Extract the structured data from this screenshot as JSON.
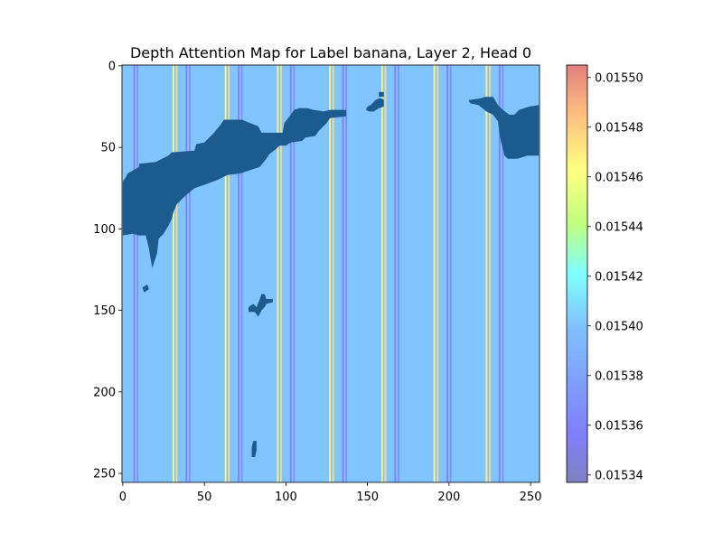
{
  "chart_data": {
    "type": "heatmap",
    "title": "Depth Attention Map for Label banana, Layer 2, Head 0",
    "xlabel": "",
    "ylabel": "",
    "xlim": [
      0,
      255
    ],
    "ylim": [
      255,
      0
    ],
    "x_ticks": [
      "0",
      "50",
      "100",
      "150",
      "200",
      "250"
    ],
    "y_ticks": [
      "0",
      "50",
      "100",
      "150",
      "200",
      "250"
    ],
    "colormap": "jet",
    "colormap_alpha": 0.5,
    "colorbar": {
      "range": [
        0.015337,
        0.015505
      ],
      "ticks": [
        "0.01534",
        "0.01536",
        "0.01538",
        "0.01540",
        "0.01542",
        "0.01544",
        "0.01546",
        "0.01548",
        "0.01550"
      ]
    },
    "base_value": 0.015381,
    "column_stripes": [
      {
        "x": 7,
        "value": 0.015355
      },
      {
        "x": 9,
        "value": 0.015362
      },
      {
        "x": 31,
        "value": 0.015445
      },
      {
        "x": 33,
        "value": 0.015455
      },
      {
        "x": 39,
        "value": 0.015355
      },
      {
        "x": 41,
        "value": 0.015362
      },
      {
        "x": 63,
        "value": 0.015445
      },
      {
        "x": 65,
        "value": 0.015455
      },
      {
        "x": 71,
        "value": 0.015355
      },
      {
        "x": 73,
        "value": 0.015362
      },
      {
        "x": 95,
        "value": 0.015445
      },
      {
        "x": 97,
        "value": 0.015455
      },
      {
        "x": 103,
        "value": 0.015355
      },
      {
        "x": 105,
        "value": 0.015362
      },
      {
        "x": 127,
        "value": 0.015445
      },
      {
        "x": 129,
        "value": 0.015455
      },
      {
        "x": 135,
        "value": 0.015355
      },
      {
        "x": 137,
        "value": 0.015362
      },
      {
        "x": 159,
        "value": 0.015445
      },
      {
        "x": 161,
        "value": 0.015455
      },
      {
        "x": 167,
        "value": 0.015355
      },
      {
        "x": 169,
        "value": 0.015362
      },
      {
        "x": 191,
        "value": 0.015445
      },
      {
        "x": 193,
        "value": 0.015455
      },
      {
        "x": 199,
        "value": 0.015355
      },
      {
        "x": 201,
        "value": 0.015362
      },
      {
        "x": 223,
        "value": 0.015445
      },
      {
        "x": 225,
        "value": 0.015455
      },
      {
        "x": 231,
        "value": 0.015355
      },
      {
        "x": 233,
        "value": 0.015362
      }
    ],
    "dark_overlay_regions": [
      {
        "name": "main-banana-band",
        "color": "#1d5b8f",
        "points": [
          [
            0,
            71
          ],
          [
            2,
            68
          ],
          [
            3,
            66
          ],
          [
            10,
            62
          ],
          [
            10,
            60
          ],
          [
            20,
            59
          ],
          [
            28,
            55
          ],
          [
            30,
            53
          ],
          [
            44,
            52
          ],
          [
            45,
            48
          ],
          [
            50,
            47
          ],
          [
            52,
            45
          ],
          [
            55,
            42
          ],
          [
            60,
            36
          ],
          [
            62,
            33
          ],
          [
            73,
            33
          ],
          [
            83,
            37
          ],
          [
            85,
            41
          ],
          [
            98,
            41
          ],
          [
            99,
            35
          ],
          [
            103,
            30
          ],
          [
            105,
            27
          ],
          [
            108,
            26
          ],
          [
            113,
            26
          ],
          [
            117,
            27
          ],
          [
            123,
            28
          ],
          [
            127,
            27
          ],
          [
            137,
            27
          ],
          [
            137,
            31
          ],
          [
            127,
            32
          ],
          [
            125,
            35
          ],
          [
            120,
            40
          ],
          [
            118,
            43
          ],
          [
            112,
            44
          ],
          [
            110,
            46
          ],
          [
            103,
            47
          ],
          [
            100,
            49
          ],
          [
            96,
            49
          ],
          [
            94,
            51
          ],
          [
            90,
            54
          ],
          [
            88,
            57
          ],
          [
            84,
            62
          ],
          [
            78,
            64
          ],
          [
            72,
            66
          ],
          [
            64,
            67
          ],
          [
            58,
            70
          ],
          [
            50,
            73
          ],
          [
            44,
            75
          ],
          [
            38,
            80
          ],
          [
            33,
            85
          ],
          [
            31,
            90
          ],
          [
            30,
            94
          ],
          [
            28,
            98
          ],
          [
            25,
            103
          ],
          [
            22,
            106
          ],
          [
            21,
            115
          ],
          [
            20,
            118
          ],
          [
            18,
            124
          ],
          [
            16,
            112
          ],
          [
            14,
            104
          ],
          [
            10,
            104
          ],
          [
            6,
            103
          ],
          [
            0,
            104
          ]
        ]
      },
      {
        "name": "right-banana-region",
        "color": "#1d5b8f",
        "points": [
          [
            212,
            21
          ],
          [
            219,
            20
          ],
          [
            222,
            19
          ],
          [
            227,
            19
          ],
          [
            230,
            24
          ],
          [
            233,
            27
          ],
          [
            237,
            30
          ],
          [
            240,
            30
          ],
          [
            243,
            27
          ],
          [
            249,
            25
          ],
          [
            255,
            24
          ],
          [
            255,
            55
          ],
          [
            248,
            55
          ],
          [
            242,
            57
          ],
          [
            236,
            57
          ],
          [
            234,
            55
          ],
          [
            233,
            51
          ],
          [
            232,
            47
          ],
          [
            231,
            42
          ],
          [
            230,
            34
          ],
          [
            227,
            30
          ],
          [
            223,
            28
          ],
          [
            218,
            24
          ],
          [
            213,
            23
          ]
        ]
      },
      {
        "name": "small-blob-a",
        "color": "#1d5b8f",
        "points": [
          [
            149,
            27
          ],
          [
            150,
            25
          ],
          [
            152,
            24
          ],
          [
            155,
            21
          ],
          [
            157,
            20
          ],
          [
            159,
            20
          ],
          [
            160,
            21
          ],
          [
            160,
            25
          ],
          [
            157,
            26
          ],
          [
            154,
            28
          ],
          [
            151,
            28
          ]
        ]
      },
      {
        "name": "small-blob-b",
        "color": "#1d5b8f",
        "points": [
          [
            157,
            16
          ],
          [
            160,
            16
          ],
          [
            160,
            19
          ],
          [
            157,
            19
          ]
        ]
      },
      {
        "name": "small-blob-c",
        "color": "#1d5b8f",
        "points": [
          [
            12,
            136
          ],
          [
            15,
            134
          ],
          [
            16,
            137
          ],
          [
            13,
            139
          ]
        ]
      },
      {
        "name": "small-blob-d",
        "color": "#1d5b8f",
        "points": [
          [
            77,
            148
          ],
          [
            80,
            146
          ],
          [
            82,
            148
          ],
          [
            84,
            143
          ],
          [
            85,
            140
          ],
          [
            87,
            140
          ],
          [
            88,
            143
          ],
          [
            92,
            143
          ],
          [
            92,
            145
          ],
          [
            88,
            146
          ],
          [
            87,
            148
          ],
          [
            85,
            150
          ],
          [
            83,
            154
          ],
          [
            81,
            151
          ],
          [
            77,
            151
          ]
        ]
      },
      {
        "name": "small-blob-e",
        "color": "#1d5b8f",
        "points": [
          [
            79,
            234
          ],
          [
            80,
            230
          ],
          [
            82,
            230
          ],
          [
            82,
            236
          ],
          [
            81,
            240
          ],
          [
            79,
            240
          ]
        ]
      }
    ]
  }
}
